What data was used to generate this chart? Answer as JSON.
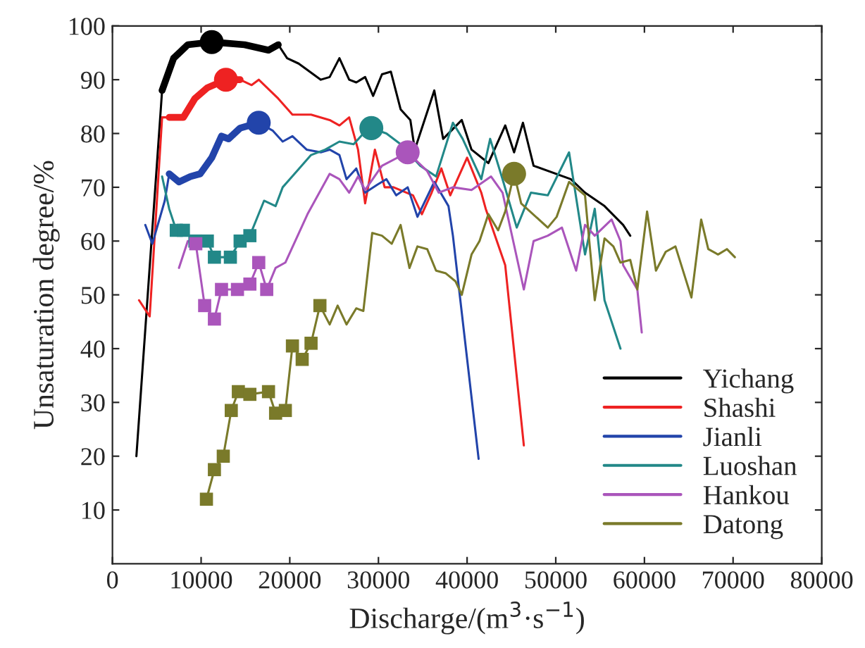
{
  "chart_data": {
    "type": "line",
    "xlabel": "Discharge/(m$^{3}$·s$^{−1}$)",
    "ylabel": "Unsaturation degree/%",
    "xlim": [
      0,
      80000
    ],
    "ylim": [
      0,
      100
    ],
    "xticks": [
      0,
      10000,
      20000,
      30000,
      40000,
      50000,
      60000,
      70000,
      80000
    ],
    "yticks": [
      10,
      20,
      30,
      40,
      50,
      60,
      70,
      80,
      90,
      100
    ],
    "grid": false,
    "legend": "bottom right",
    "marker": "none",
    "series": [
      {
        "name": "Yichang",
        "color": "#000000",
        "x": [
          2700,
          5600,
          6900,
          8500,
          11200,
          14900,
          17600,
          18700,
          19700,
          21000,
          23500,
          24500,
          25600,
          26700,
          27500,
          28500,
          29400,
          30400,
          31400,
          32500,
          33600,
          34100,
          36300,
          37300,
          39400,
          40500,
          42400,
          44300,
          45300,
          46300,
          47500,
          51700,
          53300,
          55500,
          57600,
          58400
        ],
        "values": [
          20,
          88,
          94,
          96.5,
          97,
          96.5,
          95.5,
          96.5,
          94,
          93,
          90,
          90.5,
          94,
          90,
          89.5,
          90.5,
          87,
          91,
          91.5,
          84.5,
          82.5,
          77,
          88,
          79,
          82.5,
          77,
          74.5,
          81.5,
          76.5,
          82,
          74,
          71.5,
          69,
          66.5,
          63,
          61
        ]
      },
      {
        "name": "Shashi",
        "color": "#ee2222",
        "x": [
          3000,
          4200,
          5600,
          6400,
          8000,
          9300,
          10700,
          12800,
          14400,
          15700,
          16500,
          18700,
          20300,
          22400,
          24500,
          25600,
          26700,
          27700,
          28500,
          29600,
          30700,
          31700,
          33900,
          34900,
          36000,
          37100,
          38100,
          40000,
          41600,
          42100,
          44300,
          46400
        ],
        "values": [
          49,
          46,
          83,
          83,
          83,
          86.5,
          88.5,
          90,
          90,
          89,
          90,
          86.5,
          83.5,
          83.5,
          82.5,
          81.5,
          83,
          77,
          67,
          77,
          70,
          70,
          68.5,
          65,
          69,
          73.5,
          68.5,
          75.5,
          69,
          66,
          55.5,
          22
        ]
      },
      {
        "name": "Jianli",
        "color": "#2244aa",
        "x": [
          3700,
          4500,
          5900,
          6400,
          7500,
          8800,
          9900,
          11200,
          12300,
          13100,
          14400,
          16500,
          18100,
          19200,
          20300,
          21900,
          23500,
          24500,
          25600,
          26400,
          27500,
          28500,
          29900,
          30900,
          32000,
          33300,
          34400,
          36300,
          37900,
          38400,
          41300
        ],
        "values": [
          63,
          59.5,
          67.5,
          72.5,
          71,
          72,
          72.5,
          75.5,
          79.5,
          79,
          81,
          82,
          80.5,
          78.5,
          79.5,
          77,
          76.5,
          77,
          76,
          71.5,
          73.5,
          69,
          70.5,
          71.5,
          68.5,
          70,
          64.5,
          71,
          66.5,
          61,
          19.5
        ]
      },
      {
        "name": "Luoshan",
        "color": "#228888",
        "x": [
          5600,
          6400,
          7200,
          8000,
          9300,
          10700,
          11500,
          13300,
          14400,
          15500,
          17100,
          18400,
          19200,
          20800,
          22400,
          24000,
          25600,
          27200,
          28300,
          29200,
          30900,
          32500,
          34700,
          36500,
          38400,
          39500,
          41600,
          42600,
          44000,
          45600,
          47200,
          49100,
          51500,
          53300,
          54400,
          55500,
          57300
        ],
        "values": [
          72,
          66,
          62,
          62,
          60,
          60,
          57,
          57,
          60,
          61,
          67.5,
          66.5,
          70,
          73,
          76,
          77,
          78.5,
          78,
          80,
          81,
          80,
          78,
          74,
          72,
          82,
          79,
          71.5,
          79,
          71.5,
          62.5,
          69,
          68.5,
          76.5,
          57.5,
          66,
          49,
          40
        ]
      },
      {
        "name": "Hankou",
        "color": "#aa55bb",
        "x": [
          7500,
          8500,
          9400,
          10400,
          11500,
          12300,
          14100,
          15500,
          16500,
          17400,
          18400,
          19500,
          22000,
          24500,
          25600,
          26700,
          27700,
          28500,
          30400,
          33300,
          35500,
          36800,
          38400,
          40500,
          42700,
          44000,
          46400,
          47500,
          49100,
          50700,
          52300,
          53300,
          54400,
          56300,
          57300,
          57600,
          59200,
          59700
        ],
        "values": [
          55,
          60,
          59.5,
          48,
          45.5,
          51,
          51,
          52,
          56,
          51,
          55,
          56,
          65,
          72.5,
          71.5,
          69,
          72,
          69.5,
          74,
          76.5,
          73,
          69,
          70,
          69.5,
          72,
          69,
          51,
          60,
          61,
          62.5,
          54.5,
          63,
          61,
          64,
          60,
          55.5,
          51,
          43
        ]
      },
      {
        "name": "Datong",
        "color": "#7a7a2a",
        "x": [
          10600,
          11500,
          12500,
          13400,
          14200,
          15500,
          17600,
          18400,
          19500,
          20300,
          21400,
          22400,
          23400,
          24500,
          25400,
          26400,
          27500,
          28300,
          29300,
          30400,
          31500,
          32500,
          33500,
          34400,
          35500,
          36500,
          37600,
          38700,
          39400,
          40500,
          41400,
          42400,
          43500,
          44300,
          45300,
          46100,
          49100,
          50100,
          51500,
          53300,
          54400,
          55500,
          56500,
          57300,
          58400,
          59200,
          60300,
          61300,
          62400,
          63500,
          65300,
          66400,
          67200,
          68300,
          69300,
          70200
        ],
        "values": [
          12,
          17.5,
          20,
          28.5,
          32,
          31.5,
          32,
          28,
          28.5,
          40.5,
          38,
          41,
          48,
          44.5,
          48,
          44.5,
          47.5,
          47,
          61.5,
          61,
          59.5,
          63,
          55,
          59,
          58.5,
          54.5,
          54,
          52.5,
          50,
          57.5,
          60,
          65,
          62,
          65.5,
          72.5,
          67,
          62.5,
          64.5,
          71,
          68.5,
          49,
          60.5,
          59,
          56,
          56.5,
          51,
          65.5,
          54.5,
          58,
          59,
          49.5,
          64,
          58.5,
          57.5,
          58.5,
          57
        ]
      },
      {
        "color": "#000000",
        "marker": "none",
        "x": [
          5600,
          6900,
          8500,
          11200,
          14900,
          17600,
          18700
        ],
        "values": [
          88,
          94,
          96.5,
          97,
          96.5,
          95.5,
          96.5
        ]
      },
      {
        "color": "#ee2222",
        "marker": "none",
        "x": [
          6400,
          8000,
          9300,
          10700,
          12800,
          14400
        ],
        "values": [
          83,
          83,
          86.5,
          88.5,
          90,
          90
        ]
      },
      {
        "color": "#2244aa",
        "marker": "none",
        "x": [
          6400,
          7500,
          8800,
          9900,
          11200,
          12300,
          13100,
          14400,
          16500
        ],
        "values": [
          72.5,
          71,
          72,
          72.5,
          75.5,
          79.5,
          79,
          81,
          82
        ]
      },
      {
        "type": "scatter",
        "color": "#228888",
        "marker": "square",
        "x": [
          7200,
          8000,
          9300,
          10700,
          11500,
          13300,
          14400,
          15500
        ],
        "values": [
          62,
          62,
          60,
          60,
          57,
          57,
          60,
          61
        ]
      },
      {
        "type": "scatter",
        "color": "#aa55bb",
        "marker": "square",
        "x": [
          9400,
          10400,
          11500,
          12300,
          14100,
          15500,
          16500,
          17400
        ],
        "values": [
          59.5,
          48,
          45.5,
          51,
          51,
          52,
          56,
          51
        ]
      },
      {
        "type": "scatter",
        "color": "#7a7a2a",
        "marker": "square",
        "x": [
          10600,
          11500,
          12500,
          13400,
          14200,
          15500,
          17600,
          18400,
          19500,
          20300,
          21400,
          22400,
          23400
        ],
        "values": [
          12,
          17.5,
          20,
          28.5,
          32,
          31.5,
          32,
          28,
          28.5,
          40.5,
          38,
          41,
          48
        ]
      },
      {
        "type": "scatter",
        "marker": "circle",
        "colors": [
          "#000000",
          "#ee2222",
          "#2244aa",
          "#228888",
          "#aa55bb",
          "#7a7a2a"
        ],
        "x": [
          11200,
          12800,
          16500,
          29200,
          33300,
          45300
        ],
        "values": [
          97,
          90,
          82,
          81,
          76.5,
          72.5
        ]
      }
    ]
  }
}
